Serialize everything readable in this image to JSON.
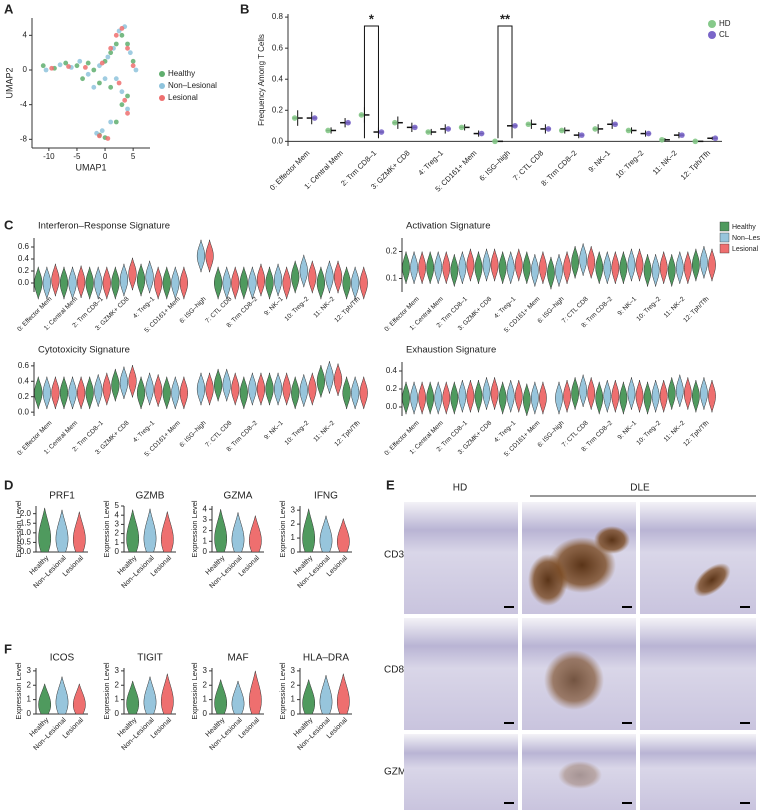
{
  "panel_labels": [
    "A",
    "B",
    "C",
    "D",
    "E",
    "F"
  ],
  "chart_data": [
    {
      "type": "scatter",
      "xlabel": "UMAP1",
      "ylabel": "UMAP2",
      "xlim": [
        -13,
        8
      ],
      "ylim": [
        -9,
        6
      ],
      "xticks": [
        -10,
        -5,
        0,
        5
      ],
      "yticks": [
        -8,
        -4,
        0,
        4
      ],
      "series": [
        {
          "name": "Healthy",
          "color": "#5fae6e",
          "x": [
            -11,
            -9,
            -7,
            -5,
            -4,
            -2,
            0,
            1,
            2,
            3,
            4,
            5,
            -3,
            -1,
            1,
            3,
            4,
            2,
            -1,
            0
          ],
          "values": [
            0.5,
            0.2,
            0.8,
            0.5,
            -1,
            0,
            1,
            2,
            3,
            4,
            3,
            1,
            0.8,
            -1.5,
            -2,
            -4,
            -3,
            -6,
            -7.5,
            -7.8
          ]
        },
        {
          "name": "Non–Lesional",
          "color": "#8ec3dc",
          "x": [
            -10.5,
            -8,
            -6,
            -4.5,
            -3,
            -1,
            0.5,
            1.5,
            2.5,
            3.5,
            4.5,
            5.5,
            -2,
            0,
            2,
            4,
            3,
            -0.5,
            -1.5,
            1
          ],
          "values": [
            0,
            0.6,
            0.3,
            1,
            -0.5,
            0.5,
            1.5,
            2.5,
            4.5,
            5,
            2,
            0,
            -2,
            -1,
            -1,
            -4.5,
            -2.5,
            -7,
            -7.3,
            -6
          ]
        },
        {
          "name": "Lesional",
          "color": "#ee6f6f",
          "x": [
            -9.5,
            -6.5,
            -3.5,
            -0.5,
            1,
            2,
            3,
            4,
            5,
            3.5,
            -1,
            0.5,
            4,
            2.5
          ],
          "values": [
            0.2,
            0.4,
            0.3,
            0.8,
            2.5,
            4,
            4.8,
            2.5,
            0.5,
            -3.5,
            -7.6,
            -7.9,
            -5,
            -1.5
          ]
        }
      ]
    },
    {
      "type": "dot",
      "ylabel": "Frequency Among T Cells",
      "ylim": [
        -0.03,
        0.82
      ],
      "yticks": [
        {
          "value": 0,
          "label": "0.0"
        },
        {
          "value": 0.2,
          "label": "0.2"
        },
        {
          "value": 0.4,
          "label": "0.4"
        },
        {
          "value": 0.6,
          "label": "0.6"
        },
        {
          "value": 0.8,
          "label": "0.8"
        }
      ],
      "categories": [
        "0: Effector Mem",
        "1: Central Mem",
        "2: Trm CD8–1",
        "3: GZMK+ CD8",
        "4: Treg–1",
        "5: CD161+ Mem",
        "6: ISG–high",
        "7: CTL CD8",
        "8: Trm CD8–2",
        "9: NK–1",
        "10: Treg–2",
        "11: NK–2",
        "12: Tph/Tfh"
      ],
      "series": [
        {
          "name": "HD",
          "color": "#86c98a",
          "values": [
            0.15,
            0.07,
            0.17,
            0.12,
            0.06,
            0.09,
            0.0,
            0.11,
            0.07,
            0.08,
            0.07,
            0.01,
            0.0
          ],
          "errors": [
            0.05,
            0.02,
            0.05,
            0.04,
            0.02,
            0.02,
            0,
            0.03,
            0.02,
            0.03,
            0.02,
            0.01,
            0
          ]
        },
        {
          "name": "CL",
          "color": "#7a66c9",
          "values": [
            0.15,
            0.12,
            0.06,
            0.09,
            0.08,
            0.05,
            0.1,
            0.08,
            0.04,
            0.11,
            0.05,
            0.04,
            0.02
          ],
          "errors": [
            0.04,
            0.03,
            0.03,
            0.03,
            0.03,
            0.02,
            0.04,
            0.03,
            0.02,
            0.03,
            0.02,
            0.02,
            0.01
          ]
        }
      ],
      "annotations": [
        {
          "text": "*",
          "category": "2: Trm CD8–1"
        },
        {
          "text": "**",
          "category": "6: ISG–high"
        }
      ]
    },
    {
      "type": "violin",
      "title": "Interferon–Response Signature",
      "ylim": [
        -0.15,
        0.75
      ],
      "yticks": [
        {
          "value": 0,
          "label": "0.0"
        },
        {
          "value": 0.2,
          "label": "0.2"
        },
        {
          "value": 0.4,
          "label": "0.4"
        },
        {
          "value": 0.6,
          "label": "0.6"
        }
      ],
      "categories": [
        "0: Effector Mem",
        "1: Central Mem",
        "2: Trm CD8–1",
        "3: GZMK+ CD8",
        "4: Treg–1",
        "5: CD161+ Mem",
        "6: ISG–high",
        "7: CTL CD8",
        "8: Trm CD8–2",
        "9: NK–1",
        "10: Treg–2",
        "11: NK–2",
        "12: Tph/Tfh"
      ],
      "series": [
        {
          "name": "Healthy",
          "color": "#4f9a5e",
          "values": [
            0.0,
            0.0,
            0.0,
            0.0,
            0.05,
            0.0,
            null,
            0.0,
            0.0,
            0.0,
            0.1,
            0.0,
            0.0
          ]
        },
        {
          "name": "Non–Lesional",
          "color": "#97c5dc",
          "values": [
            0.0,
            0.0,
            0.0,
            0.05,
            0.1,
            0.0,
            0.45,
            0.0,
            0.0,
            0.05,
            0.2,
            0.1,
            0.0
          ]
        },
        {
          "name": "Lesional",
          "color": "#ee6f6f",
          "values": [
            0.05,
            0.02,
            0.0,
            0.15,
            0.0,
            0.0,
            0.45,
            0.0,
            0.05,
            0.0,
            0.1,
            0.1,
            0.0
          ]
        }
      ]
    },
    {
      "type": "violin",
      "title": "Activation Signature",
      "ylim": [
        0.05,
        0.25
      ],
      "yticks": [
        0.1,
        0.2
      ],
      "categories": [
        "0: Effector Mem",
        "1: Central Mem",
        "2: Trm CD8–1",
        "3: GZMK+ CD8",
        "4: Treg–1",
        "5: CD161+ Mem",
        "6: ISG–high",
        "7: CTL CD8",
        "8: Trm CD8–2",
        "9: NK–1",
        "10: Treg–2",
        "11: NK–2",
        "12: Tph/Tfh"
      ],
      "series": [
        {
          "color": "#4f9a5e",
          "values": [
            0.14,
            0.14,
            0.13,
            0.14,
            0.14,
            0.14,
            0.12,
            0.16,
            0.14,
            0.14,
            0.13,
            0.13,
            0.15
          ]
        },
        {
          "color": "#97c5dc",
          "values": [
            0.14,
            0.14,
            0.14,
            0.15,
            0.14,
            0.13,
            0.13,
            0.17,
            0.14,
            0.15,
            0.13,
            0.14,
            0.16
          ]
        },
        {
          "color": "#ee6f6f",
          "values": [
            0.14,
            0.14,
            0.15,
            0.15,
            0.15,
            0.14,
            0.14,
            0.16,
            0.14,
            0.15,
            0.14,
            0.14,
            0.15
          ]
        }
      ]
    },
    {
      "type": "violin",
      "title": "Cytotoxicity Signature",
      "ylim": [
        -0.05,
        0.65
      ],
      "yticks": [
        {
          "value": 0,
          "label": "0.0"
        },
        {
          "value": 0.2,
          "label": "0.2"
        },
        {
          "value": 0.4,
          "label": "0.4"
        },
        {
          "value": 0.6,
          "label": "0.6"
        }
      ],
      "categories": [
        "0: Effector Mem",
        "1: Central Mem",
        "2: Trm CD8–1",
        "3: GZMK+ CD8",
        "4: Treg–1",
        "5: CD161+ Mem",
        "6: ISG–high",
        "7: CTL CD8",
        "8: Trm CD8–2",
        "9: NK–1",
        "10: Treg–2",
        "11: NK–2",
        "12: Tph/Tfh"
      ],
      "series": [
        {
          "color": "#4f9a5e",
          "values": [
            0.25,
            0.25,
            0.25,
            0.35,
            0.25,
            0.25,
            null,
            0.35,
            0.25,
            0.3,
            0.25,
            0.4,
            0.25
          ]
        },
        {
          "color": "#97c5dc",
          "values": [
            0.25,
            0.25,
            0.28,
            0.38,
            0.3,
            0.25,
            0.3,
            0.35,
            0.3,
            0.3,
            0.28,
            0.45,
            0.25
          ]
        },
        {
          "color": "#ee6f6f",
          "values": [
            0.25,
            0.25,
            0.3,
            0.4,
            0.28,
            0.25,
            0.3,
            0.3,
            0.3,
            0.3,
            0.3,
            0.42,
            0.25
          ]
        }
      ]
    },
    {
      "type": "violin",
      "title": "Exhaustion Signature",
      "ylim": [
        -0.1,
        0.5
      ],
      "yticks": [
        {
          "value": 0,
          "label": "0.0"
        },
        {
          "value": 0.2,
          "label": "0.2"
        },
        {
          "value": 0.4,
          "label": "0.4"
        }
      ],
      "categories": [
        "0: Effector Mem",
        "1: Central Mem",
        "2: Trm CD8–1",
        "3: GZMK+ CD8",
        "4: Treg–1",
        "5: CD161+ Mem",
        "6: ISG–high",
        "7: CTL CD8",
        "8: Trm CD8–2",
        "9: NK–1",
        "10: Treg–2",
        "11: NK–2",
        "12: Tph/Tfh"
      ],
      "series": [
        {
          "color": "#4f9a5e",
          "values": [
            0.1,
            0.1,
            0.1,
            0.12,
            0.1,
            0.08,
            null,
            0.15,
            0.1,
            0.1,
            0.1,
            0.15,
            0.12
          ]
        },
        {
          "color": "#97c5dc",
          "values": [
            0.1,
            0.1,
            0.12,
            0.15,
            0.12,
            0.1,
            0.1,
            0.18,
            0.12,
            0.15,
            0.12,
            0.18,
            0.15
          ]
        },
        {
          "color": "#ee6f6f",
          "values": [
            0.1,
            0.1,
            0.12,
            0.15,
            0.12,
            0.1,
            0.12,
            0.15,
            0.12,
            0.12,
            0.12,
            0.15,
            0.12
          ]
        }
      ]
    },
    {
      "type": "gene",
      "title": "PRF1",
      "ylabel": "Expression Level",
      "ylim": [
        0,
        2.4
      ],
      "yticks": [
        {
          "value": 0,
          "label": "0.0"
        },
        0.5,
        {
          "value": 1,
          "label": "1.0"
        },
        1.5,
        {
          "value": 2,
          "label": "2.0"
        }
      ],
      "categories": [
        "Healthy",
        "Non–Lesional",
        "Lesional"
      ],
      "values": [
        2.3,
        2.2,
        2.1
      ],
      "colors": [
        "#4f9a5e",
        "#97c5dc",
        "#ee6f6f"
      ]
    },
    {
      "type": "gene",
      "title": "GZMB",
      "ylabel": "Expression Level",
      "ylim": [
        0,
        5
      ],
      "yticks": [
        0,
        1,
        2,
        3,
        4,
        5
      ],
      "categories": [
        "Healthy",
        "Non–Lesional",
        "Lesional"
      ],
      "values": [
        4.6,
        4.7,
        4.4
      ],
      "colors": [
        "#4f9a5e",
        "#97c5dc",
        "#ee6f6f"
      ]
    },
    {
      "type": "gene",
      "title": "GZMA",
      "ylabel": "Expression Level",
      "ylim": [
        0,
        4.3
      ],
      "yticks": [
        0,
        1,
        2,
        3,
        4
      ],
      "categories": [
        "Healthy",
        "Non–Lesional",
        "Lesional"
      ],
      "values": [
        4.0,
        3.7,
        3.4
      ],
      "colors": [
        "#4f9a5e",
        "#97c5dc",
        "#ee6f6f"
      ]
    },
    {
      "type": "gene",
      "title": "IFNG",
      "ylabel": "Expression Level",
      "ylim": [
        0,
        3.3
      ],
      "yticks": [
        0,
        1,
        2,
        3
      ],
      "categories": [
        "Healthy",
        "Non–Lesional",
        "Lesional"
      ],
      "values": [
        3.1,
        2.6,
        2.4
      ],
      "colors": [
        "#4f9a5e",
        "#97c5dc",
        "#ee6f6f"
      ]
    },
    {
      "type": "gene",
      "title": "ICOS",
      "ylabel": "Expression Level",
      "ylim": [
        0,
        3.2
      ],
      "yticks": [
        0,
        1,
        2,
        3
      ],
      "categories": [
        "Healthy",
        "Non–Lesional",
        "Lesional"
      ],
      "values": [
        2.1,
        2.6,
        2.1
      ],
      "colors": [
        "#4f9a5e",
        "#97c5dc",
        "#ee6f6f"
      ]
    },
    {
      "type": "gene",
      "title": "TIGIT",
      "ylabel": "Expression Level",
      "ylim": [
        0,
        3.2
      ],
      "yticks": [
        0,
        1,
        2,
        3
      ],
      "categories": [
        "Healthy",
        "Non–Lesional",
        "Lesional"
      ],
      "values": [
        2.3,
        2.6,
        2.8
      ],
      "colors": [
        "#4f9a5e",
        "#97c5dc",
        "#ee6f6f"
      ]
    },
    {
      "type": "gene",
      "title": "MAF",
      "ylabel": "Expression Level",
      "ylim": [
        0,
        3.2
      ],
      "yticks": [
        0,
        1,
        2,
        3
      ],
      "categories": [
        "Healthy",
        "Non–Lesional",
        "Lesional"
      ],
      "values": [
        2.4,
        2.3,
        3.0
      ],
      "colors": [
        "#4f9a5e",
        "#97c5dc",
        "#ee6f6f"
      ]
    },
    {
      "type": "gene",
      "title": "HLA–DRA",
      "ylabel": "Expression Level",
      "ylim": [
        0,
        3.2
      ],
      "yticks": [
        0,
        1,
        2,
        3
      ],
      "categories": [
        "Healthy",
        "Non–Lesional",
        "Lesional"
      ],
      "values": [
        2.4,
        2.7,
        2.8
      ],
      "colors": [
        "#4f9a5e",
        "#97c5dc",
        "#ee6f6f"
      ]
    }
  ],
  "histology": {
    "columns": [
      "HD",
      "DLE"
    ],
    "rows": [
      "CD3",
      "CD8",
      "GZMB"
    ]
  }
}
